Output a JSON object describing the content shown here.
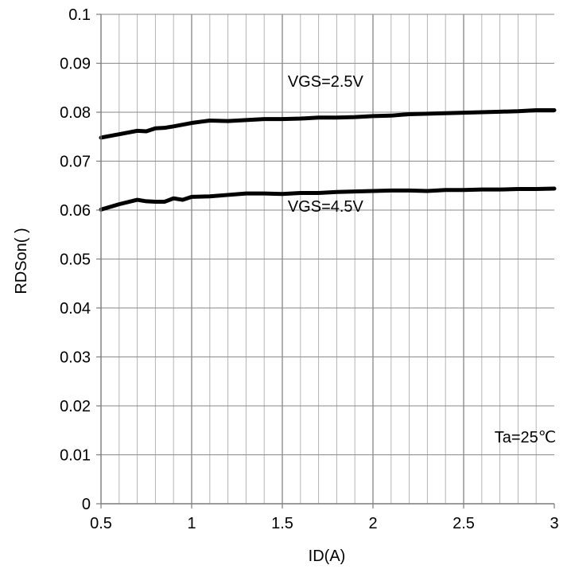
{
  "chart_data": {
    "type": "line",
    "title": "",
    "xlabel": "ID(A)",
    "ylabel": "RDSon(  )",
    "xlim": [
      0.5,
      3
    ],
    "ylim": [
      0,
      0.1
    ],
    "x_ticks": [
      "0.5",
      "1",
      "1.5",
      "2",
      "2.5",
      "3"
    ],
    "y_ticks": [
      "0",
      "0.01",
      "0.02",
      "0.03",
      "0.04",
      "0.05",
      "0.06",
      "0.07",
      "0.08",
      "0.09",
      "0.1"
    ],
    "grid": true,
    "x_minor_step": 0.1,
    "series": [
      {
        "label": "VGS=2.5V",
        "color": "#000000",
        "x": [
          0.5,
          0.6,
          0.7,
          0.75,
          0.8,
          0.85,
          0.9,
          1.0,
          1.1,
          1.2,
          1.3,
          1.4,
          1.5,
          1.6,
          1.7,
          1.8,
          1.9,
          2.0,
          2.1,
          2.2,
          2.3,
          2.4,
          2.5,
          2.6,
          2.7,
          2.8,
          2.9,
          3.0
        ],
        "y": [
          0.0748,
          0.0755,
          0.0762,
          0.0761,
          0.0767,
          0.0768,
          0.0771,
          0.0778,
          0.0783,
          0.0782,
          0.0784,
          0.0786,
          0.0786,
          0.0787,
          0.0789,
          0.0789,
          0.079,
          0.0792,
          0.0793,
          0.0796,
          0.0797,
          0.0798,
          0.0799,
          0.08,
          0.0801,
          0.0802,
          0.0804,
          0.0804
        ]
      },
      {
        "label": "VGS=4.5V",
        "color": "#000000",
        "x": [
          0.5,
          0.6,
          0.7,
          0.75,
          0.8,
          0.85,
          0.9,
          0.95,
          1.0,
          1.1,
          1.2,
          1.3,
          1.4,
          1.5,
          1.6,
          1.7,
          1.8,
          1.9,
          2.0,
          2.1,
          2.2,
          2.3,
          2.4,
          2.5,
          2.6,
          2.7,
          2.8,
          2.9,
          3.0
        ],
        "y": [
          0.0601,
          0.0612,
          0.0621,
          0.0618,
          0.0617,
          0.0617,
          0.0624,
          0.0621,
          0.0627,
          0.0628,
          0.0631,
          0.0634,
          0.0634,
          0.0633,
          0.0635,
          0.0635,
          0.0637,
          0.0638,
          0.0639,
          0.064,
          0.064,
          0.0639,
          0.0641,
          0.0641,
          0.0642,
          0.0642,
          0.0643,
          0.0643,
          0.0644
        ]
      }
    ],
    "annotations": [
      {
        "text": "VGS=2.5V",
        "x": 1.53,
        "y": 0.0852
      },
      {
        "text": "VGS=4.5V",
        "x": 1.53,
        "y": 0.0597
      },
      {
        "text": "Ta=25℃",
        "x": 2.67,
        "y": 0.0125
      }
    ]
  }
}
